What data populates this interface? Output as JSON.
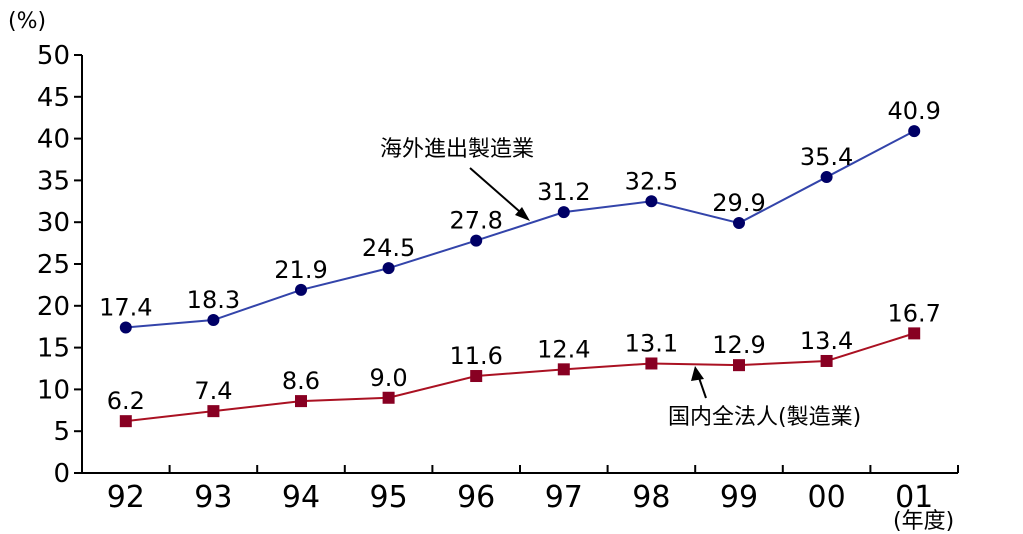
{
  "chart_data": {
    "type": "line",
    "title": "",
    "y_unit": "(%)",
    "x_unit": "(年度)",
    "categories": [
      "92",
      "93",
      "94",
      "95",
      "96",
      "97",
      "98",
      "99",
      "00",
      "01"
    ],
    "yticks": [
      "0",
      "5",
      "10",
      "15",
      "20",
      "25",
      "30",
      "35",
      "40",
      "45",
      "50"
    ],
    "ylim": [
      0,
      50
    ],
    "grid": false,
    "legend": "none",
    "series": [
      {
        "name": "海外進出製造業",
        "values": [
          17.4,
          18.3,
          21.9,
          24.5,
          27.8,
          31.2,
          32.5,
          29.9,
          35.4,
          40.9
        ],
        "labels": [
          "17.4",
          "18.3",
          "21.9",
          "24.5",
          "27.8",
          "31.2",
          "32.5",
          "29.9",
          "35.4",
          "40.9"
        ],
        "color": "#000066",
        "line_color": "#3344aa",
        "marker": "circle"
      },
      {
        "name": "国内全法人(製造業)",
        "values": [
          6.2,
          7.4,
          8.6,
          9.0,
          11.6,
          12.4,
          13.1,
          12.9,
          13.4,
          16.7
        ],
        "labels": [
          "6.2",
          "7.4",
          "8.6",
          "9.0",
          "11.6",
          "12.4",
          "13.1",
          "12.9",
          "13.4",
          "16.7"
        ],
        "color": "#880022",
        "line_color": "#aa1122",
        "marker": "square"
      }
    ]
  }
}
